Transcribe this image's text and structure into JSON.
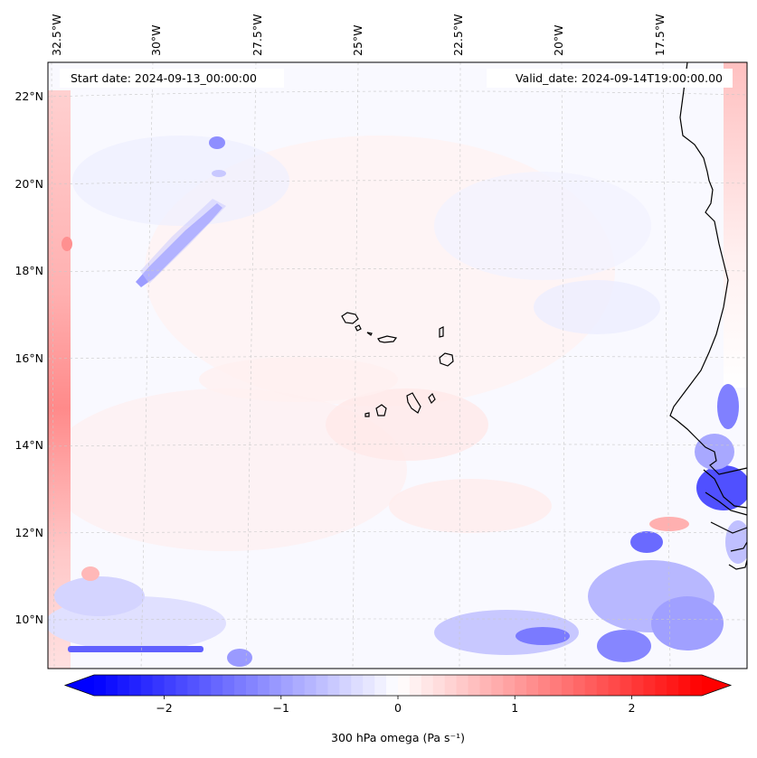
{
  "map": {
    "start_date": "Start date: 2024-09-13_00:00:00",
    "valid_date": "Valid_date: 2024-09-14T19:00:00.00",
    "lon_labels": [
      "32.5°W",
      "30°W",
      "27.5°W",
      "25°W",
      "22.5°W",
      "20°W",
      "17.5°W"
    ],
    "lat_labels": [
      "22°N",
      "20°N",
      "18°N",
      "16°N",
      "14°N",
      "12°N",
      "10°N"
    ],
    "lon_range_deg": [
      -33.0,
      -15.5
    ],
    "lat_range_deg": [
      8.9,
      22.8
    ]
  },
  "colorbar": {
    "label": "300 hPa omega (Pa s⁻¹)",
    "range": [
      -2.6,
      2.6
    ],
    "ticks": [
      {
        "value": -2,
        "label": "−2"
      },
      {
        "value": -1,
        "label": "−1"
      },
      {
        "value": 0,
        "label": "0"
      },
      {
        "value": 1,
        "label": "1"
      },
      {
        "value": 2,
        "label": "2"
      }
    ],
    "colors": {
      "negative": "#0000ff",
      "zero": "#ffffff",
      "positive": "#ff0000"
    }
  }
}
